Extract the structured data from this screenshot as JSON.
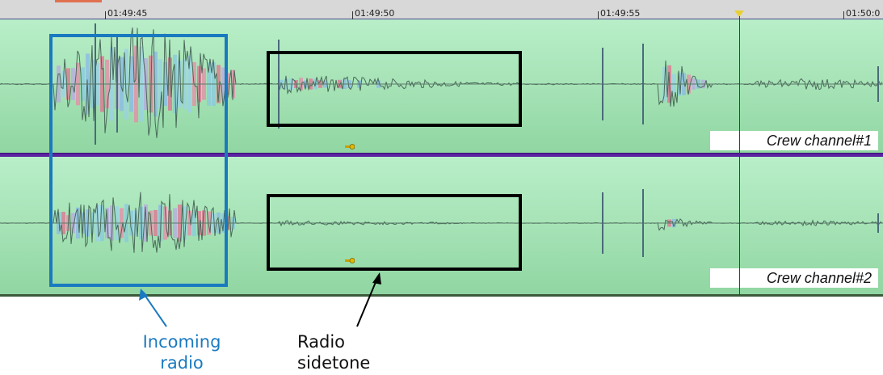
{
  "ruler": {
    "ticks": [
      "01:49:45",
      "01:49:50",
      "01:49:55",
      "01:50:0"
    ]
  },
  "tracks": [
    {
      "label": "Crew channel#1"
    },
    {
      "label": "Crew channel#2"
    }
  ],
  "annotations": {
    "incoming": "Incoming radio",
    "sidetone": "Radio sidetone"
  },
  "colors": {
    "track_background": "#a8e4b8",
    "waveform_line": "#4a6a5a",
    "incoming_box": "#1a7ac0",
    "sidetone_box": "#000000",
    "track_separator": "#5a22a0",
    "playhead": "#5a2a5a",
    "marker": "#e8d030"
  },
  "icons": [
    "key-icon",
    "playhead-marker-icon"
  ]
}
